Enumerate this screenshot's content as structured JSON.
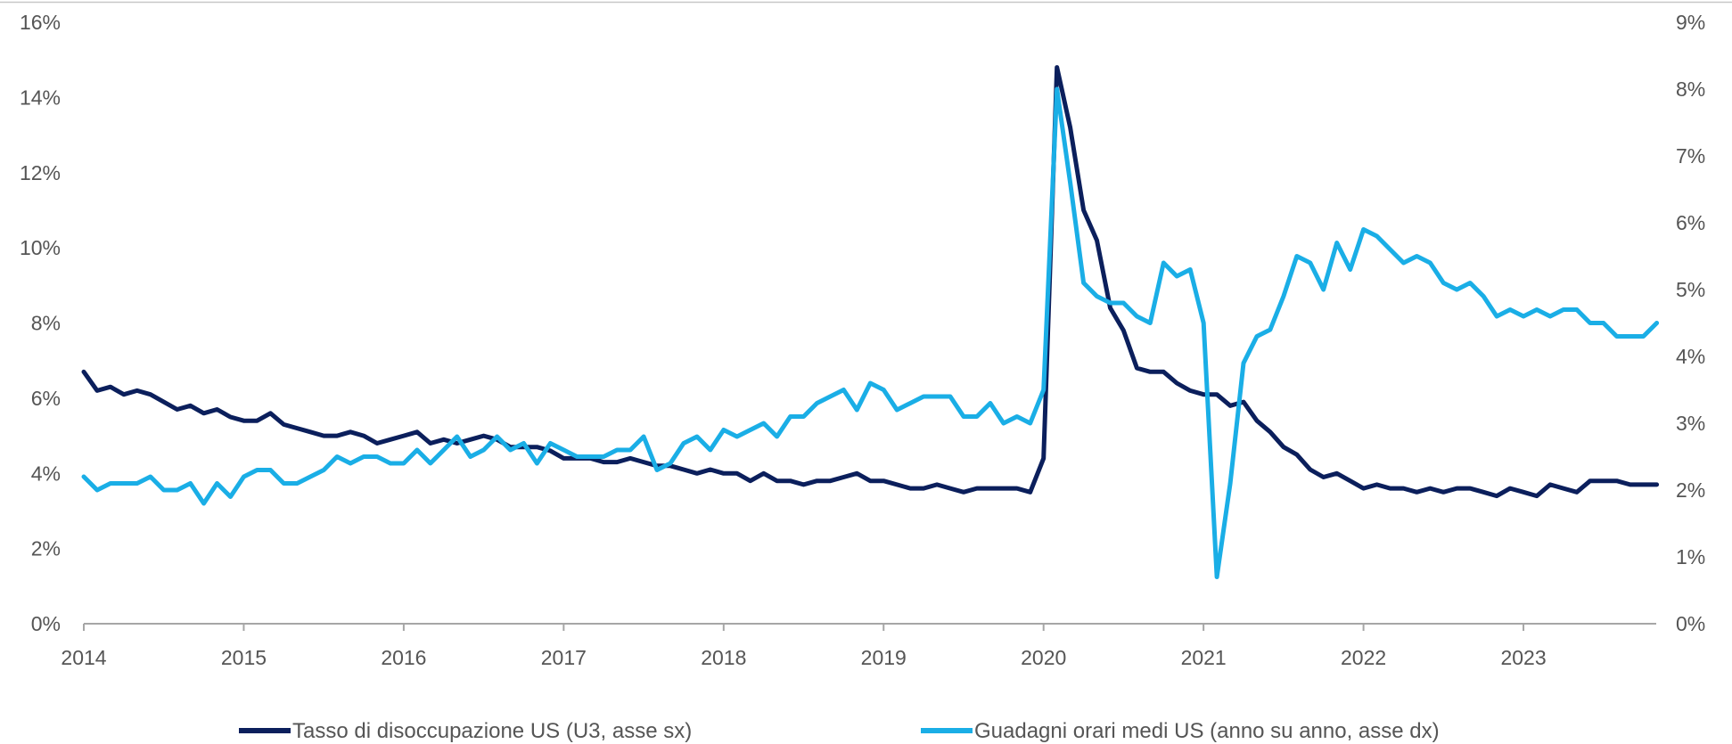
{
  "chart_data": {
    "type": "line",
    "x_ticks": [
      "2014",
      "2015",
      "2016",
      "2017",
      "2018",
      "2019",
      "2020",
      "2021",
      "2022",
      "2023"
    ],
    "x_range": [
      2014.0,
      2023.83
    ],
    "y_left": {
      "ticks": [
        "0%",
        "2%",
        "4%",
        "6%",
        "8%",
        "10%",
        "12%",
        "14%",
        "16%"
      ],
      "ylim": [
        0,
        16
      ],
      "unit": "%"
    },
    "y_right": {
      "ticks": [
        "0%",
        "1%",
        "2%",
        "3%",
        "4%",
        "5%",
        "6%",
        "7%",
        "8%",
        "9%"
      ],
      "ylim": [
        0,
        9
      ],
      "unit": "%"
    },
    "grid": false,
    "legend_position": "bottom",
    "series": [
      {
        "name": "Tasso di disoccupazione US (U3, asse sx)",
        "axis": "left",
        "color": "#0b1f5c",
        "start": "2014-01",
        "frequency": "monthly",
        "values": [
          6.7,
          6.2,
          6.3,
          6.1,
          6.2,
          6.1,
          5.9,
          5.7,
          5.8,
          5.6,
          5.7,
          5.5,
          5.4,
          5.4,
          5.6,
          5.3,
          5.2,
          5.1,
          5.0,
          5.0,
          5.1,
          5.0,
          4.8,
          4.9,
          5.0,
          5.1,
          4.8,
          4.9,
          4.8,
          4.9,
          5.0,
          4.9,
          4.7,
          4.7,
          4.7,
          4.6,
          4.4,
          4.4,
          4.4,
          4.3,
          4.3,
          4.4,
          4.3,
          4.2,
          4.2,
          4.1,
          4.0,
          4.1,
          4.0,
          4.0,
          3.8,
          4.0,
          3.8,
          3.8,
          3.7,
          3.8,
          3.8,
          3.9,
          4.0,
          3.8,
          3.8,
          3.7,
          3.6,
          3.6,
          3.7,
          3.6,
          3.5,
          3.6,
          3.6,
          3.6,
          3.6,
          3.5,
          4.4,
          14.8,
          13.2,
          11.0,
          10.2,
          8.4,
          7.8,
          6.8,
          6.7,
          6.7,
          6.4,
          6.2,
          6.1,
          6.1,
          5.8,
          5.9,
          5.4,
          5.1,
          4.7,
          4.5,
          4.1,
          3.9,
          4.0,
          3.8,
          3.6,
          3.7,
          3.6,
          3.6,
          3.5,
          3.6,
          3.5,
          3.6,
          3.6,
          3.5,
          3.4,
          3.6,
          3.5,
          3.4,
          3.7,
          3.6,
          3.5,
          3.8,
          3.8,
          3.8,
          3.7,
          3.7,
          3.7
        ]
      },
      {
        "name": "Guadagni orari medi US (anno su anno, asse dx)",
        "axis": "right",
        "color": "#1aaee6",
        "start": "2014-01",
        "frequency": "monthly",
        "values": [
          2.2,
          2.0,
          2.1,
          2.1,
          2.1,
          2.2,
          2.0,
          2.0,
          2.1,
          1.8,
          2.1,
          1.9,
          2.2,
          2.3,
          2.3,
          2.1,
          2.1,
          2.2,
          2.3,
          2.5,
          2.4,
          2.5,
          2.5,
          2.4,
          2.4,
          2.6,
          2.4,
          2.6,
          2.8,
          2.5,
          2.6,
          2.8,
          2.6,
          2.7,
          2.4,
          2.7,
          2.6,
          2.5,
          2.5,
          2.5,
          2.6,
          2.6,
          2.8,
          2.3,
          2.4,
          2.7,
          2.8,
          2.6,
          2.9,
          2.8,
          2.9,
          3.0,
          2.8,
          3.1,
          3.1,
          3.3,
          3.4,
          3.5,
          3.2,
          3.6,
          3.5,
          3.2,
          3.3,
          3.4,
          3.4,
          3.4,
          3.1,
          3.1,
          3.3,
          3.0,
          3.1,
          3.0,
          3.5,
          8.0,
          6.6,
          5.1,
          4.9,
          4.8,
          4.8,
          4.6,
          4.5,
          5.4,
          5.2,
          5.3,
          4.5,
          0.7,
          2.1,
          3.9,
          4.3,
          4.4,
          4.9,
          5.5,
          5.4,
          5.0,
          5.7,
          5.3,
          5.9,
          5.8,
          5.6,
          5.4,
          5.5,
          5.4,
          5.1,
          5.0,
          5.1,
          4.9,
          4.6,
          4.7,
          4.6,
          4.7,
          4.6,
          4.7,
          4.7,
          4.5,
          4.5,
          4.3,
          4.3,
          4.3,
          4.5
        ]
      }
    ]
  }
}
